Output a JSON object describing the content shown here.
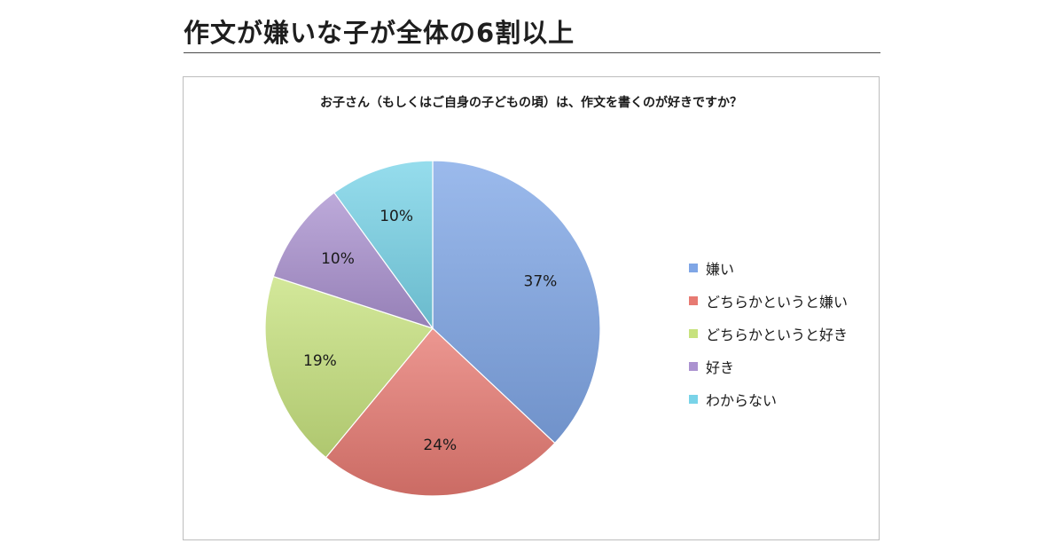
{
  "page": {
    "heading": "作文が嫌いな子が全体の6割以上"
  },
  "chart_data": {
    "type": "pie",
    "title": "お子さん（もしくはご自身の子どもの頃）は、作文を書くのが好きですか？",
    "slices": [
      {
        "label": "嫌い",
        "value": 37,
        "value_label": "37%",
        "color": "#7fa6e6"
      },
      {
        "label": "どちらかというと嫌い",
        "value": 24,
        "value_label": "24%",
        "color": "#e77a72"
      },
      {
        "label": "どちらかというと好き",
        "value": 19,
        "value_label": "19%",
        "color": "#c7e27e"
      },
      {
        "label": "好き",
        "value": 10,
        "value_label": "10%",
        "color": "#ab92d0"
      },
      {
        "label": "わからない",
        "value": 10,
        "value_label": "10%",
        "color": "#79d3e8"
      }
    ],
    "start_angle": "12 o'clock",
    "direction": "clockwise",
    "legend_position": "right"
  }
}
